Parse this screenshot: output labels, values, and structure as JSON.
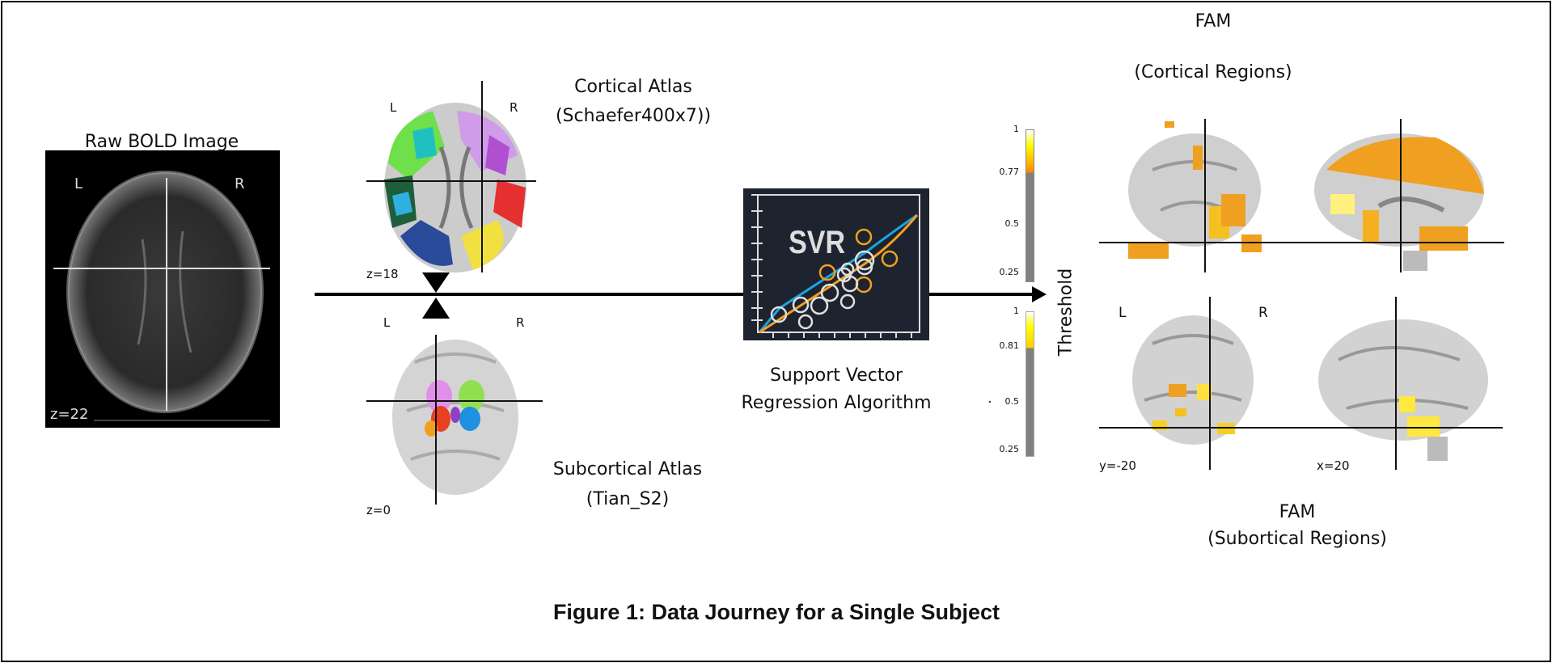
{
  "bold": {
    "title": "Raw BOLD Image",
    "left": "L",
    "right": "R",
    "slice": "z=22"
  },
  "cortical": {
    "title_line1": "Cortical Atlas",
    "title_line2": "(Schaefer400x7))",
    "left": "L",
    "right": "R",
    "slice": "z=18"
  },
  "subcortical": {
    "title_line1": "Subcortical Atlas",
    "title_line2": "(Tian_S2)",
    "left": "L",
    "right": "R",
    "slice": "z=0"
  },
  "svr": {
    "box_label": "SVR",
    "caption_line1": "Support Vector",
    "caption_line2": "Regression Algorithm",
    "colors": {
      "background": "#1e2330",
      "fit_blue": "#1fa3e0",
      "fit_orange": "#f0a020",
      "points": "#e0e0e0"
    }
  },
  "threshold": {
    "label": "Threshold",
    "cortical_bar": {
      "max": "1",
      "threshold": "0.77",
      "mid": "0.5",
      "min": "0.25",
      "threshold_value": 0.77
    },
    "subcortical_bar": {
      "max": "1",
      "threshold": "0.81",
      "mid": "0.5",
      "min": "0.25",
      "threshold_value": 0.81
    }
  },
  "fam_cortical": {
    "title_line1": "FAM",
    "title_line2": "(Cortical Regions)"
  },
  "fam_subcortical": {
    "title_line1": "FAM",
    "title_line2": "(Subortical Regions)",
    "left": "L",
    "right": "R",
    "coronal_slice": "y=-20",
    "sagittal_slice": "x=20"
  },
  "caption": "Figure 1: Data Journey for a Single Subject"
}
